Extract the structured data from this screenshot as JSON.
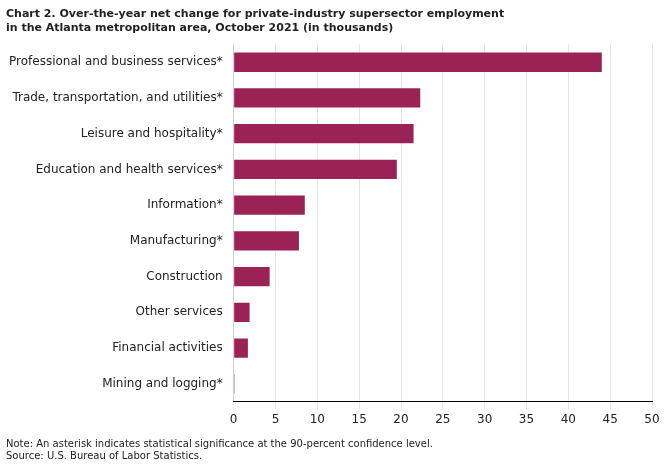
{
  "chart_data": {
    "type": "bar",
    "orientation": "horizontal",
    "title": "Chart 2. Over-the-year net change for private-industry supersector employment",
    "subtitle": "in the Atlanta metropolitan area, October 2021 (in thousands)",
    "annotations": [
      "Note: An asterisk indicates statistical significance at the 90-percent confidence level.",
      "Source: U.S. Bureau of Labor Statistics."
    ],
    "categories": [
      "Mining and logging*",
      "Financial activities",
      "Other services",
      "Construction",
      "Manufacturing*",
      "Information*",
      "Education and health services*",
      "Leisure and hospitality*",
      "Trade, transportation, and utilities*",
      "Professional and business services*"
    ],
    "values": [
      0.1,
      1.7,
      1.9,
      4.3,
      7.8,
      8.5,
      19.5,
      21.5,
      22.3,
      44.0
    ],
    "color": "#9b2254",
    "xlim": [
      0,
      50
    ],
    "xticks": [
      0,
      5,
      10,
      15,
      20,
      25,
      30,
      35,
      40,
      45,
      50
    ],
    "grid": true
  }
}
